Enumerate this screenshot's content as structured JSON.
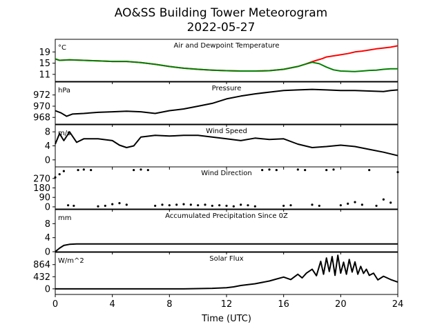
{
  "chart_data": {
    "type": "line",
    "title": "AO&SS Building Tower Meteorogram",
    "subtitle": "2022-05-27",
    "xlabel": "Time (UTC)",
    "xlim": [
      0,
      24
    ],
    "xticks": [
      "0",
      "4",
      "8",
      "12",
      "16",
      "20",
      "24"
    ],
    "panels": [
      {
        "title": "Air and Dewpoint Temperature",
        "unit": "°C",
        "ylim": [
          8.5,
          23.5
        ],
        "yticks": [
          11,
          15,
          19
        ],
        "series": [
          {
            "color": "#ff0000",
            "style": "line",
            "x": [
              0,
              0.3,
              1,
              2,
              3,
              4,
              5,
              6,
              7,
              8,
              9,
              10,
              11,
              12,
              13,
              14,
              15,
              16,
              17,
              17.5,
              18,
              18.3,
              18.7,
              19,
              19.5,
              20,
              20.5,
              21,
              21.5,
              22,
              22.5,
              23,
              23.5,
              24
            ],
            "y": [
              16.5,
              16,
              16.2,
              16,
              15.8,
              15.6,
              15.6,
              15.2,
              14.6,
              13.8,
              13.2,
              12.8,
              12.5,
              12.3,
              12.2,
              12.2,
              12.3,
              12.8,
              13.8,
              14.6,
              15.5,
              16,
              16.6,
              17.2,
              17.6,
              18,
              18.4,
              19,
              19.3,
              19.7,
              20.1,
              20.4,
              20.7,
              21.2
            ]
          },
          {
            "color": "#008000",
            "style": "line",
            "x": [
              0,
              0.3,
              1,
              2,
              3,
              4,
              5,
              6,
              7,
              8,
              9,
              10,
              11,
              12,
              13,
              14,
              15,
              16,
              17,
              17.5,
              18,
              18.5,
              19,
              19.5,
              20,
              20.5,
              21,
              21.5,
              22,
              22.5,
              23,
              23.5,
              24
            ],
            "y": [
              16.5,
              16,
              16.2,
              16,
              15.8,
              15.6,
              15.6,
              15.2,
              14.6,
              13.8,
              13.2,
              12.8,
              12.5,
              12.3,
              12.2,
              12.2,
              12.3,
              12.8,
              13.8,
              14.6,
              15.3,
              14.8,
              13.6,
              12.6,
              12.2,
              12.1,
              12,
              12.2,
              12.4,
              12.5,
              12.8,
              13,
              13
            ]
          }
        ]
      },
      {
        "title": "Pressure",
        "unit": "hPa",
        "ylim": [
          966.8,
          974.3
        ],
        "yticks": [
          968,
          970,
          972
        ],
        "series": [
          {
            "color": "#000000",
            "style": "line",
            "x": [
              0,
              0.4,
              0.8,
              1.2,
              2,
              3,
              4,
              5,
              6,
              7,
              8,
              9,
              10,
              11,
              12,
              13,
              14,
              15,
              16,
              17,
              18,
              19,
              20,
              21,
              22,
              23,
              23.5,
              24
            ],
            "y": [
              969.2,
              968.8,
              968.2,
              968.6,
              968.7,
              968.9,
              969,
              969.1,
              969,
              968.7,
              969.2,
              969.5,
              970,
              970.5,
              971.3,
              971.8,
              972.2,
              972.5,
              972.8,
              972.9,
              973,
              972.9,
              972.8,
              972.8,
              972.7,
              972.6,
              972.8,
              972.9
            ]
          }
        ]
      },
      {
        "title": "Wind Speed",
        "unit": "m/s",
        "ylim": [
          -2,
          10
        ],
        "yticks": [
          0,
          4,
          8
        ],
        "series": [
          {
            "color": "#000000",
            "style": "line",
            "x": [
              0,
              0.3,
              0.6,
              1,
              1.5,
              2,
              3,
              4,
              4.5,
              5,
              5.5,
              6,
              7,
              8,
              9,
              10,
              11,
              12,
              13,
              14,
              15,
              16,
              17,
              18,
              19,
              20,
              21,
              22,
              23,
              24
            ],
            "y": [
              4.5,
              7.5,
              5.5,
              8,
              5,
              6,
              6,
              5.5,
              4.2,
              3.5,
              4,
              6.5,
              7,
              6.8,
              7,
              7,
              6.5,
              6,
              5.5,
              6.2,
              5.8,
              6,
              4.5,
              3.5,
              3.8,
              4.2,
              3.8,
              3,
              2.2,
              1.2
            ]
          }
        ]
      },
      {
        "title": "Wind Direction",
        "unit": "",
        "ylim": [
          -20,
          380
        ],
        "yticks": [
          0,
          90,
          180,
          270
        ],
        "series": [
          {
            "color": "#000000",
            "style": "scatter",
            "x": [
              0,
              0.3,
              0.6,
              0.9,
              1.3,
              1.6,
              2,
              2.5,
              3,
              3.5,
              4,
              4.5,
              5,
              5.5,
              6,
              6.5,
              7,
              7.5,
              8,
              8.5,
              9,
              9.5,
              10,
              10.5,
              11,
              11.5,
              12,
              12.5,
              13,
              13.5,
              14,
              14.5,
              15,
              15.5,
              16,
              16.5,
              17,
              17.5,
              18,
              18.5,
              19,
              19.5,
              20,
              20.5,
              21,
              21.5,
              22,
              22.5,
              23,
              23.5,
              24
            ],
            "y": [
              280,
              310,
              340,
              15,
              10,
              350,
              355,
              350,
              5,
              10,
              25,
              35,
              20,
              350,
              355,
              350,
              10,
              20,
              15,
              20,
              25,
              20,
              15,
              20,
              10,
              15,
              10,
              5,
              20,
              15,
              5,
              350,
              355,
              350,
              10,
              15,
              355,
              350,
              20,
              10,
              350,
              355,
              15,
              30,
              45,
              20,
              350,
              10,
              70,
              40,
              330
            ]
          }
        ]
      },
      {
        "title": "Accumulated Precipitation Since 0Z",
        "unit": "mm",
        "ylim": [
          0,
          12
        ],
        "yticks": [
          0,
          4,
          8
        ],
        "series": [
          {
            "color": "#000000",
            "style": "line",
            "x": [
              0,
              0.3,
              0.6,
              1,
              1.5,
              24
            ],
            "y": [
              0,
              1,
              1.8,
              2.1,
              2.2,
              2.2
            ]
          }
        ]
      },
      {
        "title": "Solar Flux",
        "unit": "W/m^2",
        "ylim": [
          -200,
          1300
        ],
        "yticks": [
          0,
          432,
          864
        ],
        "series": [
          {
            "color": "#000000",
            "style": "line",
            "x": [
              0,
              1,
              2,
              3,
              4,
              5,
              6,
              7,
              8,
              9,
              10,
              11,
              12,
              12.5,
              13,
              14,
              15,
              15.5,
              16,
              16.5,
              17,
              17.3,
              17.6,
              18,
              18.3,
              18.6,
              18.8,
              19,
              19.2,
              19.4,
              19.6,
              19.8,
              20,
              20.2,
              20.4,
              20.6,
              20.8,
              21,
              21.2,
              21.4,
              21.6,
              21.8,
              22,
              22.3,
              22.6,
              23,
              23.5,
              24
            ],
            "y": [
              0,
              0,
              0,
              0,
              0,
              0,
              0,
              0,
              0,
              0,
              10,
              20,
              40,
              70,
              120,
              180,
              280,
              350,
              420,
              330,
              520,
              390,
              560,
              700,
              470,
              980,
              520,
              1100,
              620,
              1150,
              480,
              1200,
              560,
              950,
              520,
              1050,
              600,
              960,
              520,
              800,
              550,
              700,
              480,
              560,
              320,
              450,
              330,
              240
            ]
          }
        ]
      }
    ]
  }
}
